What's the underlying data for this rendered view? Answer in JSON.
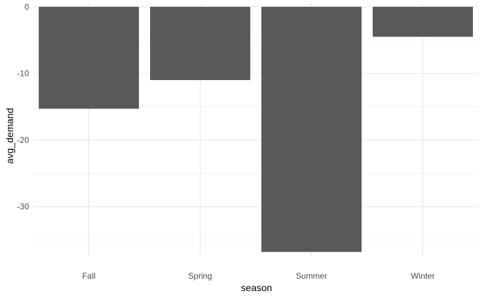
{
  "chart_data": {
    "type": "bar",
    "title": "",
    "xlabel": "season",
    "ylabel": "avg_demand",
    "categories": [
      "Fall",
      "Spring",
      "Summer",
      "Winter"
    ],
    "values": [
      -15.3,
      -11.0,
      -36.8,
      -4.5
    ],
    "ylim": [
      -37.5,
      0.5
    ],
    "y_ticks": [
      0,
      -10,
      -20,
      -30
    ],
    "y_minor_ticks": [
      -5,
      -15,
      -25,
      -35
    ],
    "grid": true,
    "legend": "none",
    "colors": {
      "bar": "#595959",
      "grid_major": "#e5e5e5",
      "grid_minor": "#f0f0f0",
      "background": "#ffffff"
    }
  }
}
